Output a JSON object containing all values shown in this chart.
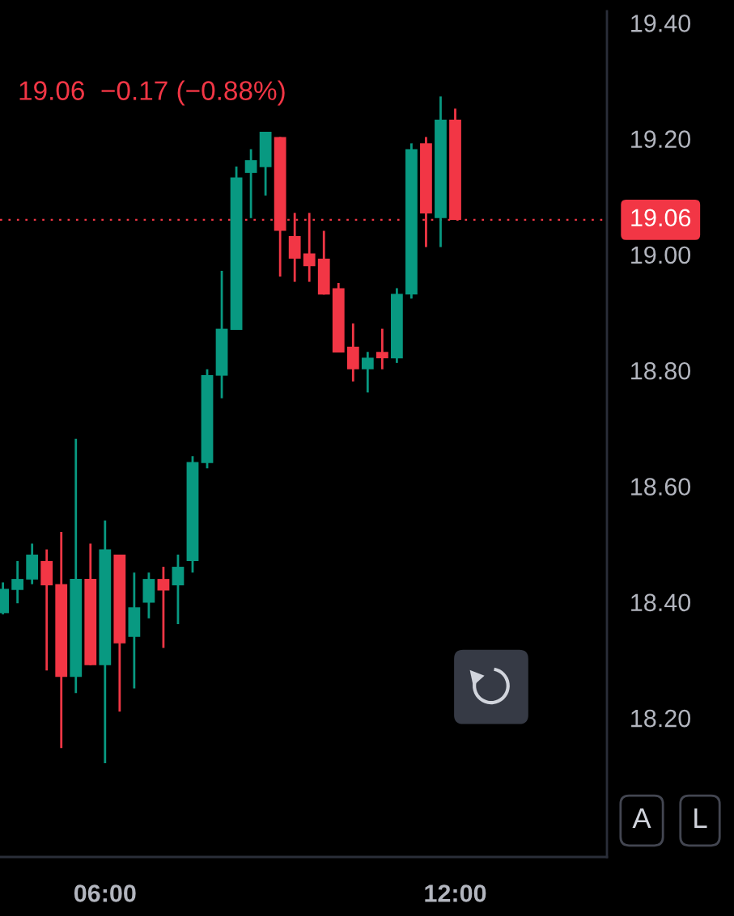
{
  "chart_data": {
    "type": "candlestick",
    "subtitle": "19.06  −0.17 (−0.88%)",
    "x": [
      4.25,
      4.5,
      4.75,
      5.0,
      5.25,
      5.5,
      5.75,
      6.0,
      6.25,
      6.5,
      6.75,
      7.0,
      7.25,
      7.5,
      7.75,
      8.0,
      8.25,
      8.5,
      8.75,
      9.0,
      9.25,
      9.5,
      9.75,
      10.0,
      10.25,
      10.5,
      10.75,
      11.0,
      11.25,
      11.5,
      11.75,
      12.0
    ],
    "ohlc": [
      [
        18.381,
        18.434,
        18.379,
        18.423
      ],
      [
        18.421,
        18.471,
        18.398,
        18.44
      ],
      [
        18.439,
        18.501,
        18.431,
        18.482
      ],
      [
        18.471,
        18.491,
        18.282,
        18.429
      ],
      [
        18.431,
        18.521,
        18.148,
        18.271
      ],
      [
        18.271,
        18.682,
        18.243,
        18.44
      ],
      [
        18.44,
        18.501,
        18.291,
        18.291
      ],
      [
        18.291,
        18.541,
        18.122,
        18.491
      ],
      [
        18.482,
        18.482,
        18.211,
        18.329
      ],
      [
        18.34,
        18.451,
        18.251,
        18.391
      ],
      [
        18.399,
        18.451,
        18.372,
        18.44
      ],
      [
        18.44,
        18.461,
        18.321,
        18.42
      ],
      [
        18.429,
        18.482,
        18.362,
        18.461
      ],
      [
        18.471,
        18.652,
        18.451,
        18.642
      ],
      [
        18.64,
        18.802,
        18.631,
        18.792
      ],
      [
        18.791,
        18.972,
        18.752,
        18.872
      ],
      [
        18.87,
        19.152,
        18.87,
        19.133
      ],
      [
        19.141,
        19.182,
        19.063,
        19.163
      ],
      [
        19.151,
        19.212,
        19.102,
        19.212
      ],
      [
        19.203,
        19.203,
        18.962,
        19.041
      ],
      [
        19.032,
        19.072,
        18.953,
        18.993
      ],
      [
        19.002,
        19.072,
        18.953,
        18.98
      ],
      [
        18.993,
        19.041,
        18.931,
        18.931
      ],
      [
        18.942,
        18.951,
        18.831,
        18.831
      ],
      [
        18.841,
        18.881,
        18.781,
        18.802
      ],
      [
        18.802,
        18.832,
        18.762,
        18.822
      ],
      [
        18.832,
        18.872,
        18.802,
        18.821
      ],
      [
        18.821,
        18.942,
        18.813,
        18.932
      ],
      [
        18.931,
        19.192,
        18.924,
        19.182
      ],
      [
        19.192,
        19.203,
        19.013,
        19.071
      ],
      [
        19.063,
        19.273,
        19.013,
        19.233
      ],
      [
        19.233,
        19.252,
        19.06,
        19.06
      ]
    ],
    "colors": [
      "#089981",
      "#089981",
      "#089981",
      "#f23645",
      "#f23645",
      "#089981",
      "#f23645",
      "#089981",
      "#f23645",
      "#089981",
      "#089981",
      "#f23645",
      "#089981",
      "#089981",
      "#089981",
      "#089981",
      "#089981",
      "#089981",
      "#089981",
      "#f23645",
      "#f23645",
      "#f23645",
      "#f23645",
      "#f23645",
      "#f23645",
      "#089981",
      "#f23645",
      "#089981",
      "#089981",
      "#f23645",
      "#089981",
      "#f23645"
    ],
    "xlim": [
      4.2,
      14.6
    ],
    "xticks": [
      {
        "value": 6,
        "label": "06:00"
      },
      {
        "value": 12,
        "label": "12:00"
      }
    ],
    "ylim": [
      17.96,
      19.42
    ],
    "yticks": [
      {
        "value": 18.2,
        "label": "18.20"
      },
      {
        "value": 18.4,
        "label": "18.40"
      },
      {
        "value": 18.6,
        "label": "18.60"
      },
      {
        "value": 18.8,
        "label": "18.80"
      },
      {
        "value": 19.0,
        "label": "19.00"
      },
      {
        "value": 19.2,
        "label": "19.20"
      },
      {
        "value": 19.4,
        "label": "19.40"
      }
    ],
    "ref_lines": [
      {
        "axis": "y",
        "value": 19.06,
        "label": "19.06",
        "color": "#f23645",
        "line_style": "dotted"
      }
    ],
    "annotations": [
      "A",
      "L"
    ]
  }
}
